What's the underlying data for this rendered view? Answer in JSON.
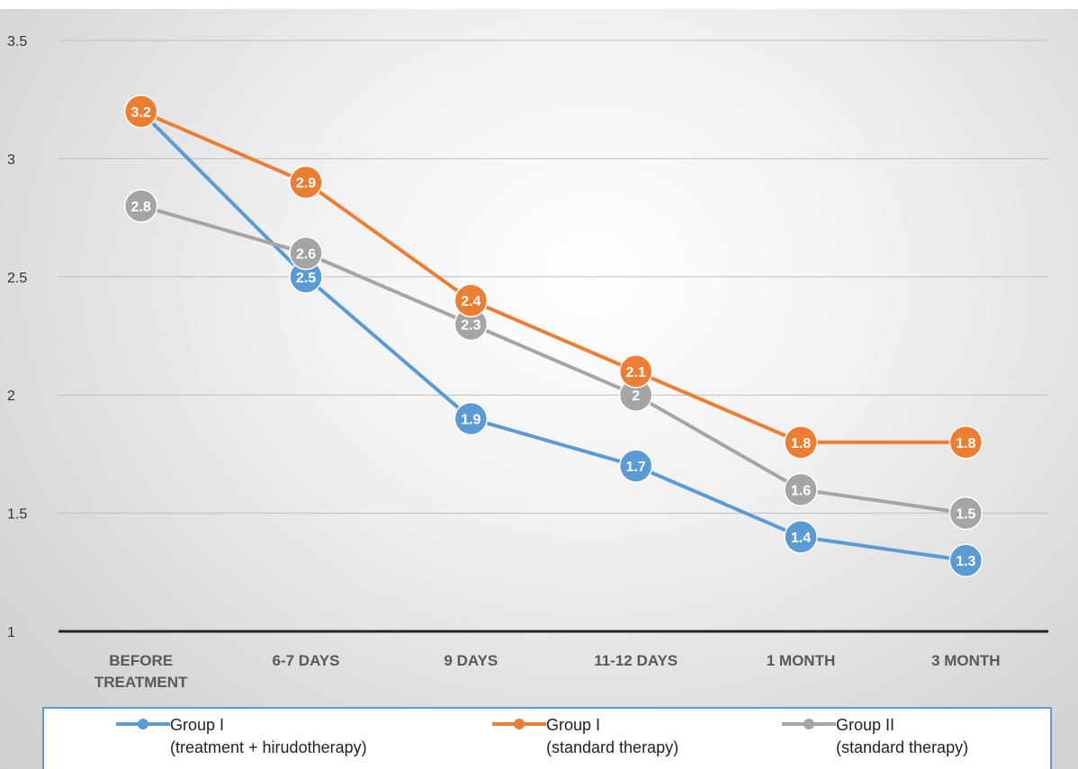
{
  "chart_data": {
    "type": "line",
    "categories": [
      [
        "BEFORE",
        "TREATMENT"
      ],
      [
        "6-7 DAYS"
      ],
      [
        "9 DAYS"
      ],
      [
        "11-12 DAYS"
      ],
      [
        "1 MONTH"
      ],
      [
        "3 MONTH"
      ]
    ],
    "y_ticks": [
      "1",
      "1.5",
      "2",
      "2.5",
      "3",
      "3.5"
    ],
    "ylim": [
      1,
      3.5
    ],
    "grid": true,
    "legend_position": "bottom",
    "series": [
      {
        "id": "blue",
        "color": "#5b9bd5",
        "values": [
          3.2,
          2.5,
          1.9,
          1.7,
          1.4,
          1.3
        ],
        "labels": [
          "",
          "2.5",
          "1.9",
          "1.7",
          "1.4",
          "1.3"
        ]
      },
      {
        "id": "gray",
        "color": "#a5a5a5",
        "values": [
          2.8,
          2.6,
          2.3,
          2.0,
          1.6,
          1.5
        ],
        "labels": [
          "2.8",
          "2.6",
          "2.3",
          "2",
          "1.6",
          "1.5"
        ]
      },
      {
        "id": "orange",
        "color": "#ed7d31",
        "values": [
          3.2,
          2.9,
          2.4,
          2.1,
          1.8,
          1.8
        ],
        "labels": [
          "3.2",
          "2.9",
          "2.4",
          "2.1",
          "1.8",
          "1.8"
        ]
      }
    ]
  },
  "legend": {
    "items": [
      {
        "line1": "Group I",
        "line2": "(treatment + hirudotherapy)",
        "color": "#5b9bd5"
      },
      {
        "line1": "Group I",
        "line2": "(standard therapy)",
        "color": "#ed7d31"
      },
      {
        "line1": "Group II",
        "line2": "(standard therapy)",
        "color": "#a5a5a5"
      }
    ]
  }
}
